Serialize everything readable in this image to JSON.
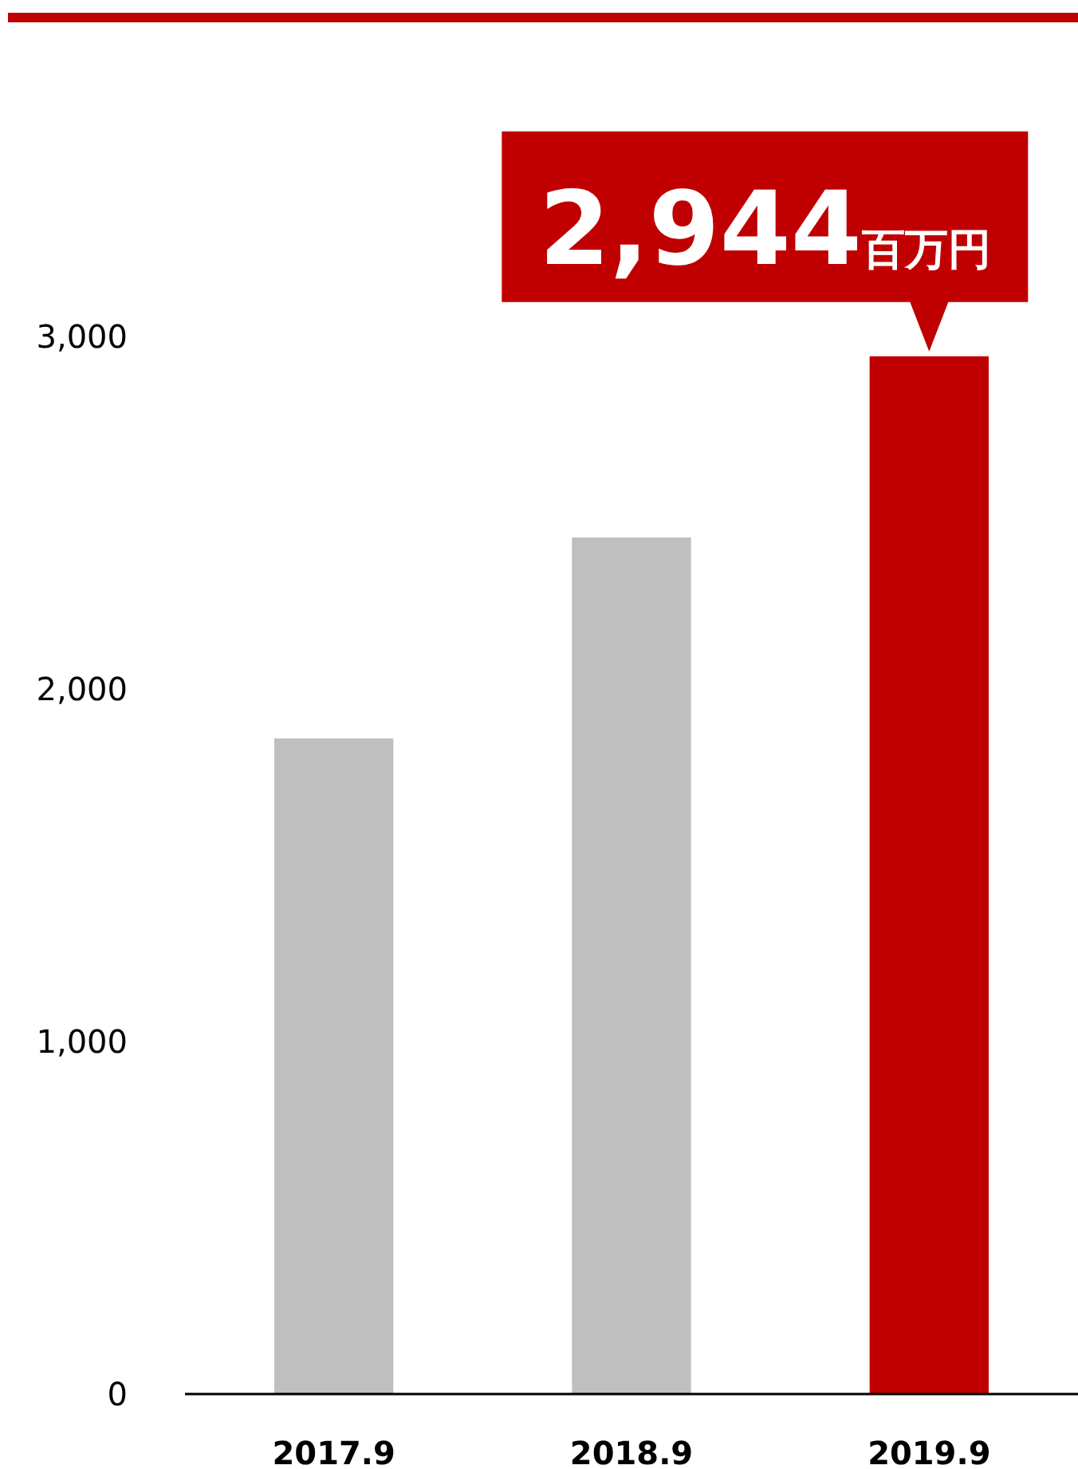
{
  "chart_data": {
    "type": "bar",
    "categories": [
      "2017.9",
      "2018.9",
      "2019.9"
    ],
    "values": [
      1860,
      2430,
      2944
    ],
    "colors": [
      "#bfbfbf",
      "#bfbfbf",
      "#c00000"
    ],
    "ylim": [
      0,
      3000
    ],
    "yticks": [
      0,
      {
        "value": 1000,
        "label": "1,000"
      },
      {
        "value": 2000,
        "label": "2,000"
      },
      {
        "value": 3000,
        "label": "3,000"
      }
    ],
    "annotations": [
      {
        "text": "2,944百万円",
        "x": "2019.9",
        "y": 2944
      }
    ]
  }
}
